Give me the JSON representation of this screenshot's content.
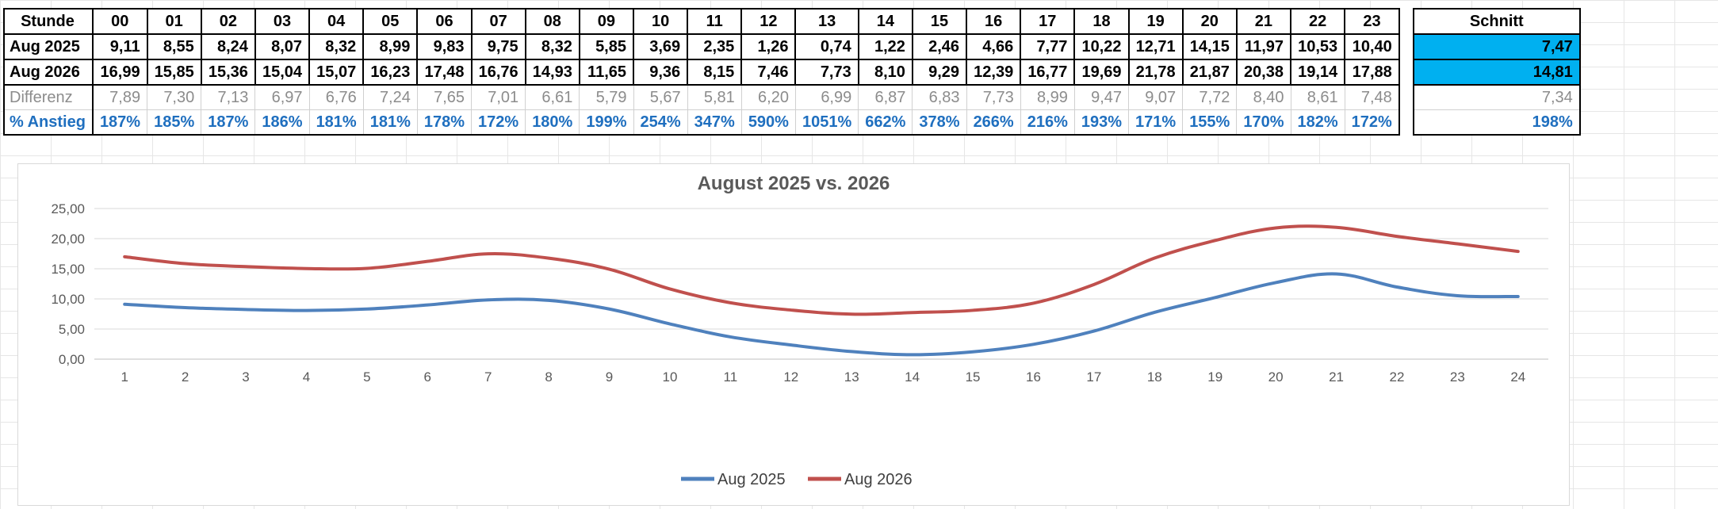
{
  "table": {
    "row_labels": [
      "Stunde",
      "Aug 2025",
      "Aug 2026",
      "Differenz",
      "% Anstieg"
    ],
    "hours": [
      "00",
      "01",
      "02",
      "03",
      "04",
      "05",
      "06",
      "07",
      "08",
      "09",
      "10",
      "11",
      "12",
      "13",
      "14",
      "15",
      "16",
      "17",
      "18",
      "19",
      "20",
      "21",
      "22",
      "23"
    ],
    "avg_header": "Schnitt",
    "aug2025": [
      "9,11",
      "8,55",
      "8,24",
      "8,07",
      "8,32",
      "8,99",
      "9,83",
      "9,75",
      "8,32",
      "5,85",
      "3,69",
      "2,35",
      "1,26",
      "0,74",
      "1,22",
      "2,46",
      "4,66",
      "7,77",
      "10,22",
      "12,71",
      "14,15",
      "11,97",
      "10,53",
      "10,40"
    ],
    "aug2026": [
      "16,99",
      "15,85",
      "15,36",
      "15,04",
      "15,07",
      "16,23",
      "17,48",
      "16,76",
      "14,93",
      "11,65",
      "9,36",
      "8,15",
      "7,46",
      "7,73",
      "8,10",
      "9,29",
      "12,39",
      "16,77",
      "19,69",
      "21,78",
      "21,87",
      "20,38",
      "19,14",
      "17,88"
    ],
    "diff": [
      "7,89",
      "7,30",
      "7,13",
      "6,97",
      "6,76",
      "7,24",
      "7,65",
      "7,01",
      "6,61",
      "5,79",
      "5,67",
      "5,81",
      "6,20",
      "6,99",
      "6,87",
      "6,83",
      "7,73",
      "8,99",
      "9,47",
      "9,07",
      "7,72",
      "8,40",
      "8,61",
      "7,48"
    ],
    "pct": [
      "187%",
      "185%",
      "187%",
      "186%",
      "181%",
      "181%",
      "178%",
      "172%",
      "180%",
      "199%",
      "254%",
      "347%",
      "590%",
      "1051%",
      "662%",
      "378%",
      "266%",
      "216%",
      "193%",
      "171%",
      "155%",
      "170%",
      "182%",
      "172%"
    ],
    "avg": {
      "aug2025": "7,47",
      "aug2026": "14,81",
      "diff": "7,34",
      "pct": "198%"
    },
    "colors": {
      "highlight": "#00b0f0",
      "pct_text": "#1f6fbf",
      "diff_text": "#8c8c8c"
    }
  },
  "chart_data": {
    "type": "line",
    "title": "August 2025 vs. 2026",
    "categories": [
      "1",
      "2",
      "3",
      "4",
      "5",
      "6",
      "7",
      "8",
      "9",
      "10",
      "11",
      "12",
      "13",
      "14",
      "15",
      "16",
      "17",
      "18",
      "19",
      "20",
      "21",
      "22",
      "23",
      "24"
    ],
    "series": [
      {
        "name": "Aug 2025",
        "color": "#4f81bd",
        "values": [
          9.11,
          8.55,
          8.24,
          8.07,
          8.32,
          8.99,
          9.83,
          9.75,
          8.32,
          5.85,
          3.69,
          2.35,
          1.26,
          0.74,
          1.22,
          2.46,
          4.66,
          7.77,
          10.22,
          12.71,
          14.15,
          11.97,
          10.53,
          10.4
        ]
      },
      {
        "name": "Aug 2026",
        "color": "#c0504d",
        "values": [
          16.99,
          15.85,
          15.36,
          15.04,
          15.07,
          16.23,
          17.48,
          16.76,
          14.93,
          11.65,
          9.36,
          8.15,
          7.46,
          7.73,
          8.1,
          9.29,
          12.39,
          16.77,
          19.69,
          21.78,
          21.87,
          20.38,
          19.14,
          17.88
        ]
      }
    ],
    "ylim": [
      0,
      25
    ],
    "yticks": [
      "0,00",
      "5,00",
      "10,00",
      "15,00",
      "20,00",
      "25,00"
    ],
    "ytick_values": [
      0,
      5,
      10,
      15,
      20,
      25
    ],
    "grid": true,
    "legend": "bottom"
  }
}
